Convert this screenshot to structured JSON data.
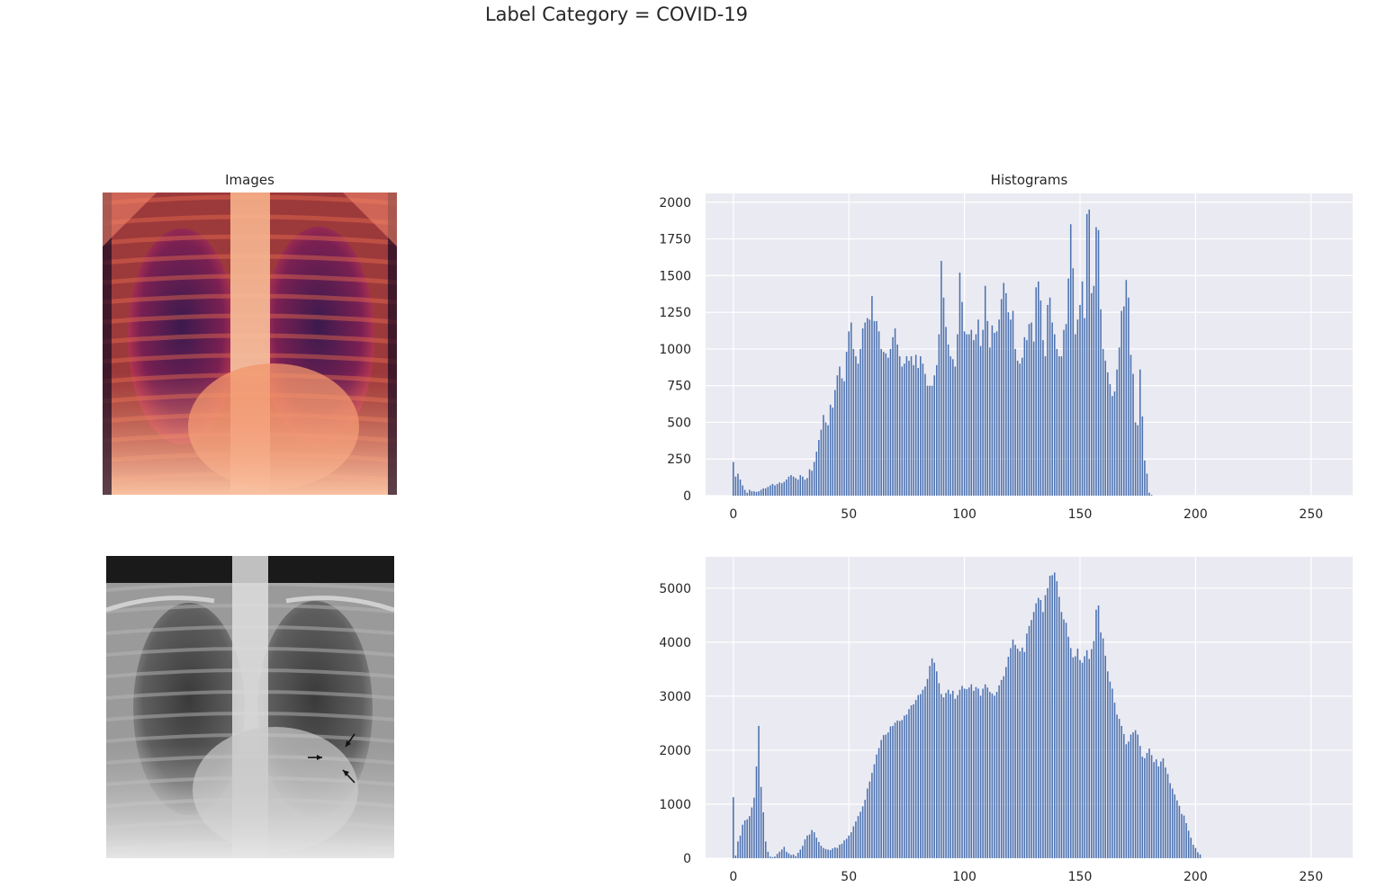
{
  "figure": {
    "suptitle": "Label Category = COVID-19",
    "images_title": "Images",
    "histograms_title": "Histograms"
  },
  "colors": {
    "bar": "#4c72b0",
    "axes_bg": "#eaeaf2",
    "grid": "#ffffff"
  },
  "images": [
    {
      "colormap": "inferno/rocket",
      "content": "chest x-ray"
    },
    {
      "colormap": "gray",
      "content": "chest x-ray with three arrows"
    }
  ],
  "chart_data": [
    {
      "type": "bar",
      "title": "Histograms",
      "xlim": [
        -12,
        268
      ],
      "ylim": [
        0,
        2060
      ],
      "xticks": [
        0,
        50,
        100,
        150,
        200,
        250
      ],
      "yticks": [
        0,
        250,
        500,
        750,
        1000,
        1250,
        1500,
        1750,
        2000
      ],
      "grid": true,
      "x_start": 0,
      "values": [
        230,
        130,
        150,
        110,
        70,
        40,
        20,
        40,
        30,
        30,
        25,
        30,
        40,
        50,
        50,
        60,
        70,
        80,
        70,
        80,
        90,
        85,
        95,
        110,
        130,
        140,
        130,
        120,
        110,
        140,
        130,
        110,
        120,
        180,
        170,
        230,
        300,
        380,
        450,
        550,
        500,
        480,
        620,
        600,
        720,
        820,
        880,
        800,
        780,
        980,
        1120,
        1180,
        1000,
        950,
        900,
        1000,
        1140,
        1180,
        1210,
        1200,
        1360,
        1190,
        1190,
        1120,
        1000,
        980,
        970,
        940,
        1000,
        1080,
        1140,
        1030,
        950,
        880,
        900,
        950,
        920,
        950,
        890,
        960,
        870,
        950,
        900,
        830,
        750,
        750,
        750,
        820,
        890,
        1100,
        1600,
        1350,
        1150,
        1030,
        950,
        930,
        880,
        1100,
        1520,
        1320,
        1120,
        1100,
        1100,
        1130,
        1060,
        1100,
        1200,
        1020,
        1130,
        1430,
        1190,
        1010,
        1160,
        1110,
        1120,
        1200,
        1340,
        1450,
        1380,
        1250,
        1200,
        1260,
        1000,
        920,
        900,
        940,
        1080,
        1060,
        1170,
        1180,
        1050,
        1420,
        1460,
        1330,
        1060,
        950,
        1300,
        1350,
        1180,
        1100,
        1000,
        950,
        950,
        1130,
        1170,
        1480,
        1850,
        1550,
        1100,
        1200,
        1300,
        1460,
        1210,
        1920,
        1950,
        1380,
        1430,
        1830,
        1810,
        1270,
        1000,
        920,
        840,
        760,
        680,
        710,
        860,
        1010,
        1260,
        1290,
        1470,
        1350,
        960,
        830,
        500,
        480,
        860,
        540,
        240,
        150,
        20,
        5
      ],
      "xlabel": "",
      "ylabel": ""
    },
    {
      "type": "bar",
      "xlim": [
        -12,
        268
      ],
      "ylim": [
        0,
        5580
      ],
      "xticks": [
        0,
        50,
        100,
        150,
        200,
        250
      ],
      "yticks": [
        0,
        1000,
        2000,
        3000,
        4000,
        5000
      ],
      "grid": true,
      "x_start": 0,
      "values": [
        1130,
        50,
        310,
        420,
        620,
        700,
        720,
        780,
        940,
        1120,
        1700,
        2450,
        1320,
        850,
        310,
        120,
        30,
        20,
        30,
        80,
        120,
        160,
        210,
        120,
        90,
        60,
        70,
        40,
        100,
        160,
        230,
        350,
        420,
        440,
        520,
        480,
        380,
        300,
        230,
        190,
        170,
        160,
        150,
        180,
        200,
        190,
        250,
        270,
        330,
        360,
        420,
        480,
        590,
        680,
        780,
        860,
        960,
        1080,
        1290,
        1420,
        1580,
        1740,
        1920,
        2040,
        2190,
        2280,
        2290,
        2330,
        2440,
        2450,
        2510,
        2550,
        2540,
        2560,
        2640,
        2660,
        2760,
        2830,
        2850,
        2930,
        3020,
        3040,
        3120,
        3180,
        3320,
        3560,
        3700,
        3620,
        3460,
        3240,
        3040,
        2980,
        3060,
        3120,
        3040,
        3100,
        2950,
        3020,
        3120,
        3190,
        3140,
        3130,
        3160,
        3220,
        3100,
        3170,
        3140,
        3010,
        3140,
        3220,
        3160,
        3080,
        3050,
        3010,
        3080,
        3200,
        3300,
        3370,
        3540,
        3730,
        3890,
        4050,
        3950,
        3880,
        3830,
        3900,
        3820,
        4160,
        4300,
        4410,
        4560,
        4720,
        4820,
        4780,
        4560,
        4870,
        5000,
        5230,
        5240,
        5290,
        5130,
        4840,
        4560,
        4420,
        4360,
        4100,
        3890,
        3720,
        3740,
        3880,
        3670,
        3620,
        3740,
        3850,
        3690,
        3870,
        4020,
        4600,
        4680,
        4180,
        4070,
        3750,
        3460,
        3270,
        3140,
        2880,
        2660,
        2580,
        2450,
        2300,
        2110,
        2160,
        2290,
        2330,
        2370,
        2290,
        2080,
        1880,
        1850,
        1950,
        2030,
        1910,
        1780,
        1830,
        1700,
        1790,
        1850,
        1680,
        1560,
        1390,
        1290,
        1180,
        1070,
        970,
        820,
        790,
        650,
        510,
        380,
        250,
        190,
        110,
        70
      ]
    }
  ]
}
